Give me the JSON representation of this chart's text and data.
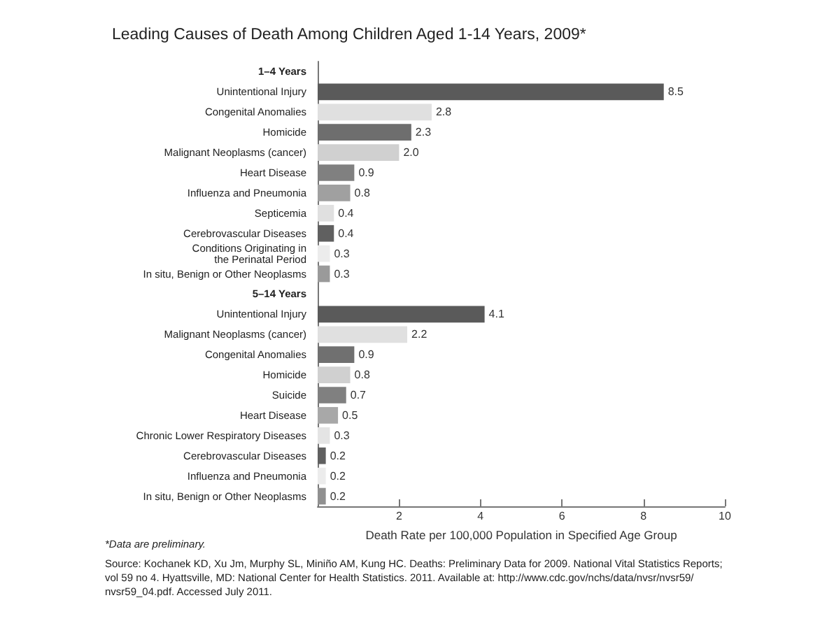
{
  "chart_data": {
    "type": "bar",
    "orientation": "horizontal",
    "title": "Leading Causes of Death Among Children Aged 1-14 Years, 2009*",
    "xlabel": "Death Rate per 100,000 Population in Specified Age Group",
    "categories": [
      "1–4 Years",
      "Unintentional Injury",
      "Congenital Anomalies",
      "Homicide",
      "Malignant Neoplasms (cancer)",
      "Heart Disease",
      "Influenza and Pneumonia",
      "Septicemia",
      "Cerebrovascular Diseases",
      "Conditions Originating in\nthe Perinatal Period",
      "In situ, Benign or Other Neoplasms",
      "5–14 Years",
      "Unintentional Injury",
      "Malignant Neoplasms (cancer)",
      "Congenital Anomalies",
      "Homicide",
      "Suicide",
      "Heart Disease",
      "Chronic Lower Respiratory Diseases",
      "Cerebrovascular Diseases",
      "Influenza and Pneumonia",
      "In situ, Benign or Other Neoplasms"
    ],
    "values": [
      null,
      8.5,
      2.8,
      2.3,
      2.0,
      0.9,
      0.8,
      0.4,
      0.4,
      0.3,
      0.3,
      null,
      4.1,
      2.2,
      0.9,
      0.8,
      0.7,
      0.5,
      0.3,
      0.2,
      0.2,
      0.2
    ],
    "value_labels": [
      null,
      "8.5",
      "2.8",
      "2.3",
      "2.0",
      "0.9",
      "0.8",
      "0.4",
      "0.4",
      "0.3",
      "0.3",
      null,
      "4.1",
      "2.2",
      "0.9",
      "0.8",
      "0.7",
      "0.5",
      "0.3",
      "0.2",
      "0.2",
      "0.2"
    ],
    "colors": [
      "#ffffff",
      "#5a5a5a",
      "#e0e0e0",
      "#6e6e6e",
      "#d0d0d0",
      "#808080",
      "#a0a0a0",
      "#e0e0e0",
      "#606060",
      "#ececec",
      "#9a9a9a",
      "#ffffff",
      "#5a5a5a",
      "#e0e0e0",
      "#707070",
      "#d0d0d0",
      "#808080",
      "#a8a8a8",
      "#e4e4e4",
      "#606060",
      "#ececec",
      "#909090"
    ],
    "xlim": [
      0,
      10
    ],
    "xticks": [
      2,
      4,
      6,
      8,
      10
    ],
    "annotations": [
      "*Data are preliminary.",
      "Source: Kochanek KD, Xu Jm, Murphy SL, Miniño AM, Kung HC. Deaths: Preliminary Data for 2009. National Vital Statistics Reports; vol 59 no 4. Hyattsville, MD: National Center for Health Statistics. 2011. Available at: http://www.cdc.gov/nchs/data/nvsr/nvsr59/nvsr59_04.pdf. Accessed July 2011."
    ]
  }
}
